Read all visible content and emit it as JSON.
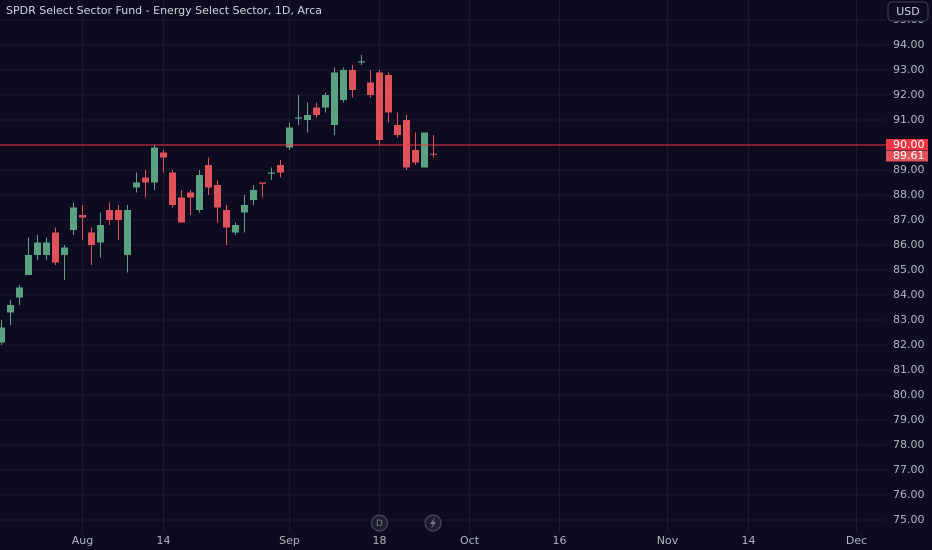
{
  "chart_data": {
    "type": "candlestick",
    "title": "SPDR Select Sector Fund - Energy Select Sector, 1D, Arca",
    "currency": "USD",
    "dividend_marker": "D",
    "up_color": "#5ba283",
    "down_color": "#e0525a",
    "categories": [
      null,
      null,
      null,
      null,
      null,
      null,
      null,
      null,
      null,
      "Aug",
      null,
      null,
      null,
      null,
      null,
      null,
      null,
      null,
      "14",
      null,
      null,
      null,
      null,
      null,
      null,
      null,
      null,
      null,
      null,
      null,
      null,
      null,
      "Sep",
      null,
      null,
      null,
      null,
      null,
      null,
      null,
      null,
      null,
      "18",
      null,
      null,
      null,
      null,
      null,
      null,
      null,
      null,
      null,
      "Oct",
      null,
      null,
      null,
      null,
      null,
      null,
      null,
      null,
      null,
      "16",
      null,
      null,
      null,
      null,
      null,
      null,
      null,
      null,
      null,
      null,
      null,
      "Nov",
      null,
      null,
      null,
      null,
      null,
      null,
      null,
      null,
      "14",
      null,
      null,
      null,
      null,
      null,
      null,
      null,
      null,
      null,
      null,
      null,
      "Dec",
      null,
      null
    ],
    "open": [
      82.1,
      83.3,
      83.9,
      84.8,
      85.6,
      85.6,
      86.5,
      85.6,
      86.6,
      87.2,
      86.5,
      86.1,
      87.4,
      87.4,
      85.6,
      88.3,
      88.7,
      88.5,
      89.7,
      88.9,
      87.9,
      88.1,
      87.4,
      89.2,
      88.4,
      87.4,
      86.5,
      87.3,
      87.8,
      88.5,
      88.85,
      89.2,
      89.9,
      91.05,
      91.0,
      91.5,
      91.5,
      90.8,
      91.8,
      93.0,
      93.3,
      92.5,
      92.9,
      92.8,
      90.8,
      91.0,
      89.8,
      89.1,
      89.65,
      null,
      null,
      null,
      null,
      null,
      null,
      null,
      null,
      null,
      null,
      null,
      null,
      null,
      null,
      null,
      null,
      null,
      null,
      null,
      null,
      null,
      null,
      null,
      null,
      null,
      null,
      null,
      null,
      null,
      null,
      null,
      null,
      null,
      null,
      null,
      null,
      null,
      null,
      null,
      null,
      null,
      null,
      null,
      null,
      null,
      null,
      null,
      null,
      null
    ],
    "high": [
      83.0,
      83.8,
      84.4,
      86.3,
      86.4,
      86.3,
      86.7,
      86.0,
      87.7,
      87.6,
      86.7,
      87.3,
      87.7,
      87.6,
      87.6,
      88.9,
      89.0,
      90.0,
      89.8,
      89.0,
      88.2,
      88.2,
      89.0,
      89.5,
      88.6,
      87.6,
      86.9,
      88.0,
      88.4,
      88.5,
      89.1,
      89.4,
      90.9,
      92.0,
      91.7,
      91.7,
      92.1,
      93.1,
      93.1,
      93.2,
      93.6,
      93.0,
      93.0,
      92.9,
      91.3,
      91.2,
      90.5,
      90.5,
      90.4,
      null,
      null,
      null,
      null,
      null,
      null,
      null,
      null,
      null,
      null,
      null,
      null,
      null,
      null,
      null,
      null,
      null,
      null,
      null,
      null,
      null,
      null,
      null,
      null,
      null,
      null,
      null,
      null,
      null,
      null,
      null,
      null,
      null,
      null,
      null,
      null,
      null,
      null,
      null,
      null,
      null,
      null,
      null,
      null,
      null,
      null,
      null,
      null,
      null
    ],
    "low": [
      82.0,
      82.8,
      83.6,
      84.8,
      85.4,
      85.4,
      85.2,
      84.6,
      86.4,
      86.2,
      85.2,
      85.5,
      86.8,
      86.2,
      84.9,
      88.1,
      87.9,
      88.2,
      88.9,
      87.5,
      86.9,
      87.2,
      87.3,
      88.0,
      86.9,
      86.0,
      86.4,
      86.5,
      87.6,
      87.9,
      88.6,
      88.7,
      89.8,
      90.8,
      90.5,
      91.1,
      91.3,
      90.4,
      91.7,
      91.9,
      93.2,
      91.9,
      90.0,
      90.9,
      90.3,
      89.0,
      89.2,
      89.1,
      89.5,
      null,
      null,
      null,
      null,
      null,
      null,
      null,
      null,
      null,
      null,
      null,
      null,
      null,
      null,
      null,
      null,
      null,
      null,
      null,
      null,
      null,
      null,
      null,
      null,
      null,
      null,
      null,
      null,
      null,
      null,
      null,
      null,
      null,
      null,
      null,
      null,
      null,
      null,
      null,
      null,
      null,
      null,
      null,
      null,
      null,
      null,
      null,
      null,
      null
    ],
    "close": [
      82.7,
      83.6,
      84.3,
      85.6,
      86.1,
      86.1,
      85.3,
      85.9,
      87.5,
      87.1,
      86.0,
      86.8,
      87.0,
      87.0,
      87.4,
      88.5,
      88.5,
      89.9,
      89.5,
      87.6,
      86.9,
      87.9,
      88.8,
      88.3,
      87.5,
      86.7,
      86.8,
      87.6,
      88.2,
      88.45,
      88.9,
      88.9,
      90.7,
      91.1,
      91.2,
      91.2,
      92.0,
      92.9,
      93.0,
      92.2,
      93.35,
      92.0,
      90.2,
      91.3,
      90.4,
      89.1,
      89.3,
      90.5,
      89.61,
      null,
      null,
      null,
      null,
      null,
      null,
      null,
      null,
      null,
      null,
      null,
      null,
      null,
      null,
      null,
      null,
      null,
      null,
      null,
      null,
      null,
      null,
      null,
      null,
      null,
      null,
      null,
      null,
      null,
      null,
      null,
      null,
      null,
      null,
      null,
      null,
      null,
      null,
      null,
      null,
      null,
      null,
      null,
      null,
      null,
      null,
      null,
      null,
      null
    ],
    "ylim": [
      74.5,
      95.8
    ],
    "yticks": [
      {
        "value": 75,
        "label": "75.00"
      },
      {
        "value": 76,
        "label": "76.00"
      },
      {
        "value": 77,
        "label": "77.00"
      },
      {
        "value": 78,
        "label": "78.00"
      },
      {
        "value": 79,
        "label": "79.00"
      },
      {
        "value": 80,
        "label": "80.00"
      },
      {
        "value": 81,
        "label": "81.00"
      },
      {
        "value": 82,
        "label": "82.00"
      },
      {
        "value": 83,
        "label": "83.00"
      },
      {
        "value": 84,
        "label": "84.00"
      },
      {
        "value": 85,
        "label": "85.00"
      },
      {
        "value": 86,
        "label": "86.00"
      },
      {
        "value": 87,
        "label": "87.00"
      },
      {
        "value": 88,
        "label": "88.00"
      },
      {
        "value": 89,
        "label": "89.00"
      },
      {
        "value": 90,
        "label": "90.00"
      },
      {
        "value": 91,
        "label": "91.00"
      },
      {
        "value": 92,
        "label": "92.00"
      },
      {
        "value": 93,
        "label": "93.00"
      },
      {
        "value": 94,
        "label": "94.00"
      },
      {
        "value": 95,
        "label": "95.00"
      }
    ],
    "hline": {
      "value": 90,
      "label": "90.00",
      "color": "#f23645"
    },
    "grid": true
  }
}
